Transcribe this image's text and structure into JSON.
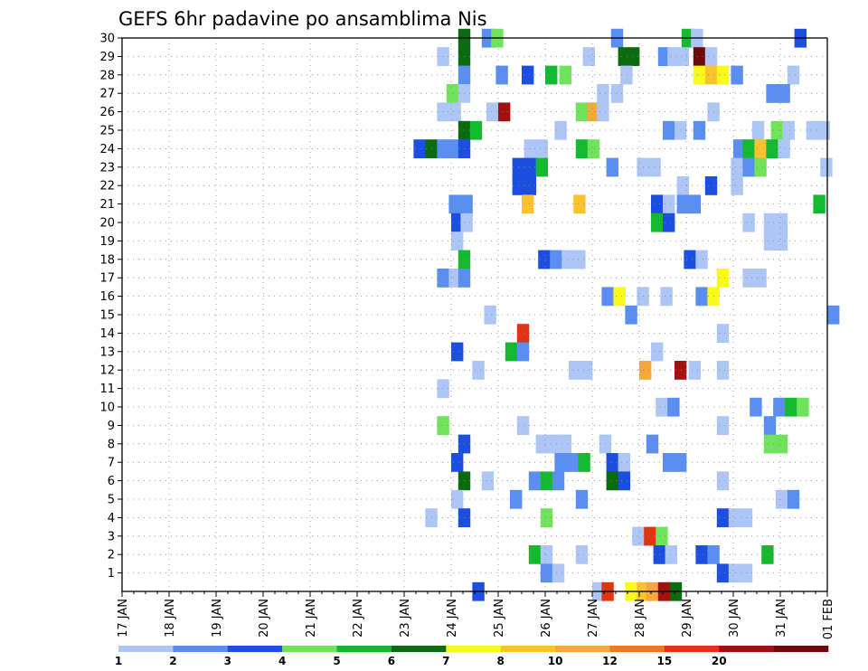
{
  "chart_data": {
    "type": "heatmap",
    "title": "GEFS 6hr padavine po ansamblima Nis",
    "xlabel": "",
    "ylabel": "",
    "x_tick_labels": [
      "17 JAN",
      "18 JAN",
      "19 JAN",
      "20 JAN",
      "21 JAN",
      "22 JAN",
      "23 JAN",
      "24 JAN",
      "25 JAN",
      "26 JAN",
      "27 JAN",
      "28 JAN",
      "29 JAN",
      "30 JAN",
      "31 JAN",
      "01 FEB"
    ],
    "xlim_days": [
      17,
      32
    ],
    "y_tick_labels": [
      "1",
      "2",
      "3",
      "4",
      "5",
      "6",
      "7",
      "8",
      "9",
      "10",
      "11",
      "12",
      "13",
      "14",
      "15",
      "16",
      "17",
      "18",
      "19",
      "20",
      "21",
      "22",
      "23",
      "24",
      "25",
      "26",
      "27",
      "28",
      "29",
      "30"
    ],
    "ylim": [
      0,
      30
    ],
    "grid": true,
    "colorbar": {
      "labels": [
        "1",
        "2",
        "3",
        "4",
        "5",
        "6",
        "7",
        "8",
        "10",
        "12",
        "15",
        "20"
      ],
      "colors": [
        "#aec6f5",
        "#5a8ef0",
        "#1c4ee0",
        "#6fe35a",
        "#13b92f",
        "#0b6b0f",
        "#f9f91c",
        "#f9c22e",
        "#f7a83a",
        "#f2761c",
        "#df3515",
        "#a40f0f",
        "#6e0a0a"
      ],
      "placement": "bottom"
    },
    "data_format": "[day_index_from_17_JAN, member, color_class]",
    "cells": [
      [
        7.15,
        30,
        5
      ],
      [
        7.65,
        30,
        1
      ],
      [
        7.85,
        30,
        3
      ],
      [
        10.4,
        30,
        1
      ],
      [
        11.9,
        30,
        4
      ],
      [
        12.1,
        30,
        0
      ],
      [
        14.3,
        30,
        2
      ],
      [
        6.7,
        29,
        0
      ],
      [
        7.15,
        29,
        5
      ],
      [
        9.8,
        29,
        0
      ],
      [
        10.55,
        29,
        5
      ],
      [
        10.75,
        29,
        5
      ],
      [
        11.4,
        29,
        1
      ],
      [
        11.6,
        29,
        0
      ],
      [
        11.8,
        29,
        0
      ],
      [
        12.15,
        29,
        12
      ],
      [
        12.4,
        29,
        0
      ],
      [
        7.15,
        28,
        1
      ],
      [
        7.95,
        28,
        1
      ],
      [
        8.5,
        28,
        2
      ],
      [
        9.0,
        28,
        4
      ],
      [
        9.3,
        28,
        3
      ],
      [
        10.6,
        28,
        0
      ],
      [
        12.15,
        28,
        6
      ],
      [
        12.4,
        28,
        7
      ],
      [
        12.65,
        28,
        6
      ],
      [
        12.95,
        28,
        1
      ],
      [
        14.15,
        28,
        0
      ],
      [
        6.9,
        27,
        3
      ],
      [
        7.15,
        27,
        0
      ],
      [
        10.1,
        27,
        0
      ],
      [
        10.4,
        27,
        0
      ],
      [
        13.7,
        27,
        1
      ],
      [
        13.95,
        27,
        1
      ],
      [
        6.7,
        26,
        0
      ],
      [
        6.95,
        26,
        0
      ],
      [
        7.75,
        26,
        0
      ],
      [
        8.0,
        26,
        11
      ],
      [
        9.65,
        26,
        3
      ],
      [
        9.9,
        26,
        8
      ],
      [
        10.1,
        26,
        0
      ],
      [
        12.45,
        26,
        0
      ],
      [
        7.15,
        25,
        5
      ],
      [
        7.4,
        25,
        4
      ],
      [
        9.2,
        25,
        0
      ],
      [
        11.5,
        25,
        1
      ],
      [
        11.75,
        25,
        0
      ],
      [
        12.15,
        25,
        1
      ],
      [
        13.4,
        25,
        0
      ],
      [
        13.8,
        25,
        3
      ],
      [
        14.05,
        25,
        0
      ],
      [
        14.55,
        25,
        0
      ],
      [
        14.8,
        25,
        0
      ],
      [
        6.2,
        24,
        2
      ],
      [
        6.45,
        24,
        5
      ],
      [
        6.7,
        24,
        1
      ],
      [
        6.95,
        24,
        1
      ],
      [
        7.15,
        24,
        2
      ],
      [
        8.55,
        24,
        0
      ],
      [
        8.8,
        24,
        0
      ],
      [
        9.65,
        24,
        4
      ],
      [
        9.9,
        24,
        3
      ],
      [
        13.0,
        24,
        1
      ],
      [
        13.2,
        24,
        4
      ],
      [
        13.45,
        24,
        7
      ],
      [
        13.7,
        24,
        4
      ],
      [
        13.95,
        24,
        0
      ],
      [
        8.3,
        23,
        2
      ],
      [
        8.55,
        23,
        2
      ],
      [
        8.8,
        23,
        4
      ],
      [
        10.3,
        23,
        1
      ],
      [
        10.95,
        23,
        0
      ],
      [
        11.2,
        23,
        0
      ],
      [
        12.95,
        23,
        0
      ],
      [
        13.2,
        23,
        1
      ],
      [
        13.45,
        23,
        3
      ],
      [
        14.85,
        23,
        0
      ],
      [
        8.3,
        22,
        2
      ],
      [
        8.55,
        22,
        2
      ],
      [
        12.4,
        22,
        2
      ],
      [
        12.95,
        22,
        0
      ],
      [
        11.8,
        22,
        0
      ],
      [
        8.5,
        21,
        7
      ],
      [
        9.6,
        21,
        7
      ],
      [
        6.95,
        21,
        1
      ],
      [
        7.2,
        21,
        1
      ],
      [
        11.25,
        21,
        2
      ],
      [
        11.5,
        21,
        0
      ],
      [
        11.8,
        21,
        1
      ],
      [
        12.05,
        21,
        1
      ],
      [
        14.7,
        21,
        4
      ],
      [
        7.0,
        20,
        2
      ],
      [
        7.2,
        20,
        0
      ],
      [
        11.25,
        20,
        4
      ],
      [
        11.5,
        20,
        2
      ],
      [
        13.2,
        20,
        0
      ],
      [
        13.65,
        20,
        0
      ],
      [
        13.9,
        20,
        0
      ],
      [
        7.0,
        19,
        0
      ],
      [
        13.65,
        19,
        0
      ],
      [
        13.9,
        19,
        0
      ],
      [
        7.15,
        18,
        4
      ],
      [
        8.85,
        18,
        2
      ],
      [
        9.1,
        18,
        1
      ],
      [
        9.35,
        18,
        0
      ],
      [
        9.6,
        18,
        0
      ],
      [
        11.95,
        18,
        2
      ],
      [
        12.2,
        18,
        0
      ],
      [
        6.7,
        17,
        1
      ],
      [
        6.95,
        17,
        0
      ],
      [
        7.15,
        17,
        1
      ],
      [
        12.65,
        17,
        6
      ],
      [
        13.2,
        17,
        0
      ],
      [
        13.45,
        17,
        0
      ],
      [
        10.2,
        16,
        1
      ],
      [
        10.45,
        16,
        6
      ],
      [
        10.95,
        16,
        0
      ],
      [
        11.45,
        16,
        0
      ],
      [
        12.2,
        16,
        1
      ],
      [
        12.45,
        16,
        6
      ],
      [
        10.7,
        15,
        1
      ],
      [
        15.0,
        15,
        1
      ],
      [
        7.7,
        15,
        0
      ],
      [
        8.4,
        14,
        10
      ],
      [
        12.65,
        14,
        0
      ],
      [
        7.0,
        13,
        2
      ],
      [
        8.15,
        13,
        4
      ],
      [
        8.4,
        13,
        1
      ],
      [
        11.25,
        13,
        0
      ],
      [
        7.45,
        12,
        0
      ],
      [
        9.5,
        12,
        0
      ],
      [
        9.75,
        12,
        0
      ],
      [
        11.0,
        12,
        8
      ],
      [
        11.75,
        12,
        11
      ],
      [
        12.05,
        12,
        0
      ],
      [
        12.65,
        12,
        0
      ],
      [
        6.7,
        11,
        0
      ],
      [
        11.35,
        10,
        0
      ],
      [
        11.6,
        10,
        1
      ],
      [
        13.35,
        10,
        1
      ],
      [
        13.85,
        10,
        1
      ],
      [
        14.1,
        10,
        4
      ],
      [
        14.35,
        10,
        3
      ],
      [
        6.7,
        9,
        3
      ],
      [
        8.4,
        9,
        0
      ],
      [
        12.65,
        9,
        0
      ],
      [
        13.65,
        9,
        1
      ],
      [
        7.15,
        8,
        2
      ],
      [
        8.8,
        8,
        0
      ],
      [
        9.05,
        8,
        0
      ],
      [
        9.3,
        8,
        0
      ],
      [
        10.15,
        8,
        0
      ],
      [
        11.15,
        8,
        1
      ],
      [
        13.65,
        8,
        3
      ],
      [
        13.9,
        8,
        3
      ],
      [
        7.0,
        7,
        2
      ],
      [
        9.2,
        7,
        1
      ],
      [
        9.45,
        7,
        1
      ],
      [
        9.7,
        7,
        4
      ],
      [
        10.3,
        7,
        2
      ],
      [
        10.55,
        7,
        0
      ],
      [
        11.5,
        7,
        1
      ],
      [
        11.75,
        7,
        1
      ],
      [
        7.15,
        6,
        5
      ],
      [
        7.65,
        6,
        0
      ],
      [
        8.65,
        6,
        1
      ],
      [
        8.9,
        6,
        4
      ],
      [
        9.15,
        6,
        1
      ],
      [
        10.3,
        6,
        5
      ],
      [
        10.55,
        6,
        2
      ],
      [
        12.65,
        6,
        0
      ],
      [
        7.0,
        5,
        0
      ],
      [
        8.25,
        5,
        1
      ],
      [
        9.65,
        5,
        1
      ],
      [
        13.9,
        5,
        0
      ],
      [
        14.15,
        5,
        1
      ],
      [
        6.45,
        4,
        0
      ],
      [
        7.15,
        4,
        2
      ],
      [
        8.9,
        4,
        3
      ],
      [
        12.65,
        4,
        2
      ],
      [
        12.9,
        4,
        0
      ],
      [
        13.15,
        4,
        0
      ],
      [
        10.85,
        3,
        0
      ],
      [
        11.1,
        3,
        10
      ],
      [
        11.35,
        3,
        3
      ],
      [
        8.65,
        2,
        4
      ],
      [
        8.9,
        2,
        0
      ],
      [
        9.65,
        2,
        0
      ],
      [
        11.3,
        2,
        2
      ],
      [
        11.55,
        2,
        0
      ],
      [
        12.2,
        2,
        2
      ],
      [
        12.45,
        2,
        1
      ],
      [
        13.6,
        2,
        4
      ],
      [
        8.9,
        1,
        1
      ],
      [
        9.15,
        1,
        0
      ],
      [
        12.65,
        1,
        2
      ],
      [
        12.9,
        1,
        0
      ],
      [
        13.15,
        1,
        0
      ],
      [
        7.45,
        0,
        2
      ],
      [
        10.0,
        0,
        0
      ],
      [
        10.2,
        0,
        10
      ],
      [
        10.7,
        0,
        6
      ],
      [
        10.95,
        0,
        7
      ],
      [
        11.15,
        0,
        8
      ],
      [
        11.4,
        0,
        11
      ],
      [
        11.65,
        0,
        5
      ]
    ]
  }
}
